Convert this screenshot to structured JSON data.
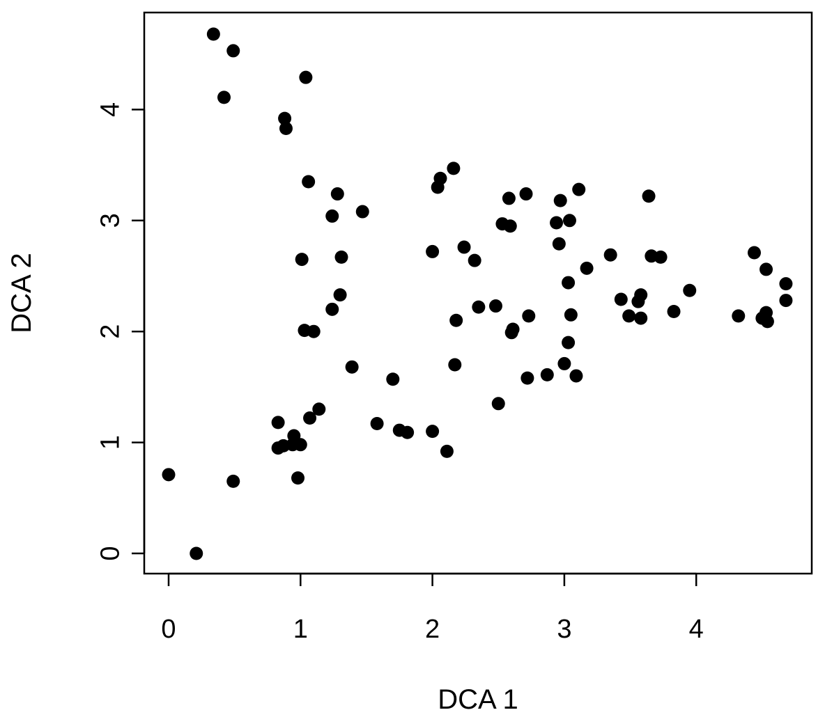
{
  "chart_data": {
    "type": "scatter",
    "title": "",
    "xlabel": "DCA 1",
    "ylabel": "DCA 2",
    "xlim": [
      -0.18,
      4.88
    ],
    "ylim": [
      -0.18,
      4.88
    ],
    "x_ticks": [
      0,
      1,
      2,
      3,
      4
    ],
    "x_tick_labels": [
      "0",
      "1",
      "2",
      "3",
      "4"
    ],
    "y_ticks": [
      0,
      1,
      2,
      3,
      4
    ],
    "y_tick_labels": [
      "0",
      "1",
      "2",
      "3",
      "4"
    ],
    "grid": false,
    "point_color": "#000000",
    "points": [
      {
        "x": 0.34,
        "y": 4.68
      },
      {
        "x": 0.49,
        "y": 4.53
      },
      {
        "x": 0.42,
        "y": 4.11
      },
      {
        "x": 1.04,
        "y": 4.29
      },
      {
        "x": 0.88,
        "y": 3.92
      },
      {
        "x": 0.89,
        "y": 3.83
      },
      {
        "x": 1.06,
        "y": 3.35
      },
      {
        "x": 1.28,
        "y": 3.24
      },
      {
        "x": 1.24,
        "y": 3.04
      },
      {
        "x": 1.47,
        "y": 3.08
      },
      {
        "x": 1.01,
        "y": 2.65
      },
      {
        "x": 1.31,
        "y": 2.67
      },
      {
        "x": 1.3,
        "y": 2.33
      },
      {
        "x": 1.24,
        "y": 2.2
      },
      {
        "x": 1.03,
        "y": 2.01
      },
      {
        "x": 1.1,
        "y": 2.0
      },
      {
        "x": 1.39,
        "y": 1.68
      },
      {
        "x": 0.83,
        "y": 1.18
      },
      {
        "x": 1.14,
        "y": 1.3
      },
      {
        "x": 1.07,
        "y": 1.22
      },
      {
        "x": 0.95,
        "y": 1.06
      },
      {
        "x": 0.87,
        "y": 0.97
      },
      {
        "x": 0.83,
        "y": 0.95
      },
      {
        "x": 0.94,
        "y": 0.98
      },
      {
        "x": 1.0,
        "y": 0.98
      },
      {
        "x": 0.98,
        "y": 0.68
      },
      {
        "x": 0.49,
        "y": 0.65
      },
      {
        "x": 0.0,
        "y": 0.71
      },
      {
        "x": 0.21,
        "y": 0.0
      },
      {
        "x": 1.58,
        "y": 1.17
      },
      {
        "x": 1.7,
        "y": 1.57
      },
      {
        "x": 1.75,
        "y": 1.11
      },
      {
        "x": 1.81,
        "y": 1.09
      },
      {
        "x": 2.0,
        "y": 1.1
      },
      {
        "x": 2.11,
        "y": 0.92
      },
      {
        "x": 2.16,
        "y": 3.47
      },
      {
        "x": 2.06,
        "y": 3.38
      },
      {
        "x": 2.04,
        "y": 3.3
      },
      {
        "x": 2.0,
        "y": 2.72
      },
      {
        "x": 2.24,
        "y": 2.76
      },
      {
        "x": 2.32,
        "y": 2.64
      },
      {
        "x": 2.35,
        "y": 2.22
      },
      {
        "x": 2.18,
        "y": 2.1
      },
      {
        "x": 2.17,
        "y": 1.7
      },
      {
        "x": 2.48,
        "y": 2.23
      },
      {
        "x": 2.5,
        "y": 1.35
      },
      {
        "x": 2.53,
        "y": 2.97
      },
      {
        "x": 2.59,
        "y": 2.95
      },
      {
        "x": 2.58,
        "y": 3.2
      },
      {
        "x": 2.71,
        "y": 3.24
      },
      {
        "x": 2.61,
        "y": 2.02
      },
      {
        "x": 2.6,
        "y": 1.99
      },
      {
        "x": 2.73,
        "y": 2.14
      },
      {
        "x": 2.72,
        "y": 1.58
      },
      {
        "x": 2.87,
        "y": 1.61
      },
      {
        "x": 2.94,
        "y": 2.98
      },
      {
        "x": 2.97,
        "y": 3.18
      },
      {
        "x": 2.96,
        "y": 2.79
      },
      {
        "x": 3.04,
        "y": 3.0
      },
      {
        "x": 3.11,
        "y": 3.28
      },
      {
        "x": 3.03,
        "y": 2.44
      },
      {
        "x": 3.17,
        "y": 2.57
      },
      {
        "x": 3.05,
        "y": 2.15
      },
      {
        "x": 3.03,
        "y": 1.9
      },
      {
        "x": 3.0,
        "y": 1.71
      },
      {
        "x": 3.09,
        "y": 1.6
      },
      {
        "x": 3.35,
        "y": 2.69
      },
      {
        "x": 3.43,
        "y": 2.29
      },
      {
        "x": 3.49,
        "y": 2.14
      },
      {
        "x": 3.56,
        "y": 2.27
      },
      {
        "x": 3.58,
        "y": 2.33
      },
      {
        "x": 3.58,
        "y": 2.12
      },
      {
        "x": 3.64,
        "y": 3.22
      },
      {
        "x": 3.66,
        "y": 2.68
      },
      {
        "x": 3.73,
        "y": 2.67
      },
      {
        "x": 3.83,
        "y": 2.18
      },
      {
        "x": 3.95,
        "y": 2.37
      },
      {
        "x": 4.32,
        "y": 2.14
      },
      {
        "x": 4.44,
        "y": 2.71
      },
      {
        "x": 4.53,
        "y": 2.56
      },
      {
        "x": 4.5,
        "y": 2.12
      },
      {
        "x": 4.53,
        "y": 2.17
      },
      {
        "x": 4.54,
        "y": 2.09
      },
      {
        "x": 4.68,
        "y": 2.43
      },
      {
        "x": 4.68,
        "y": 2.28
      }
    ]
  }
}
